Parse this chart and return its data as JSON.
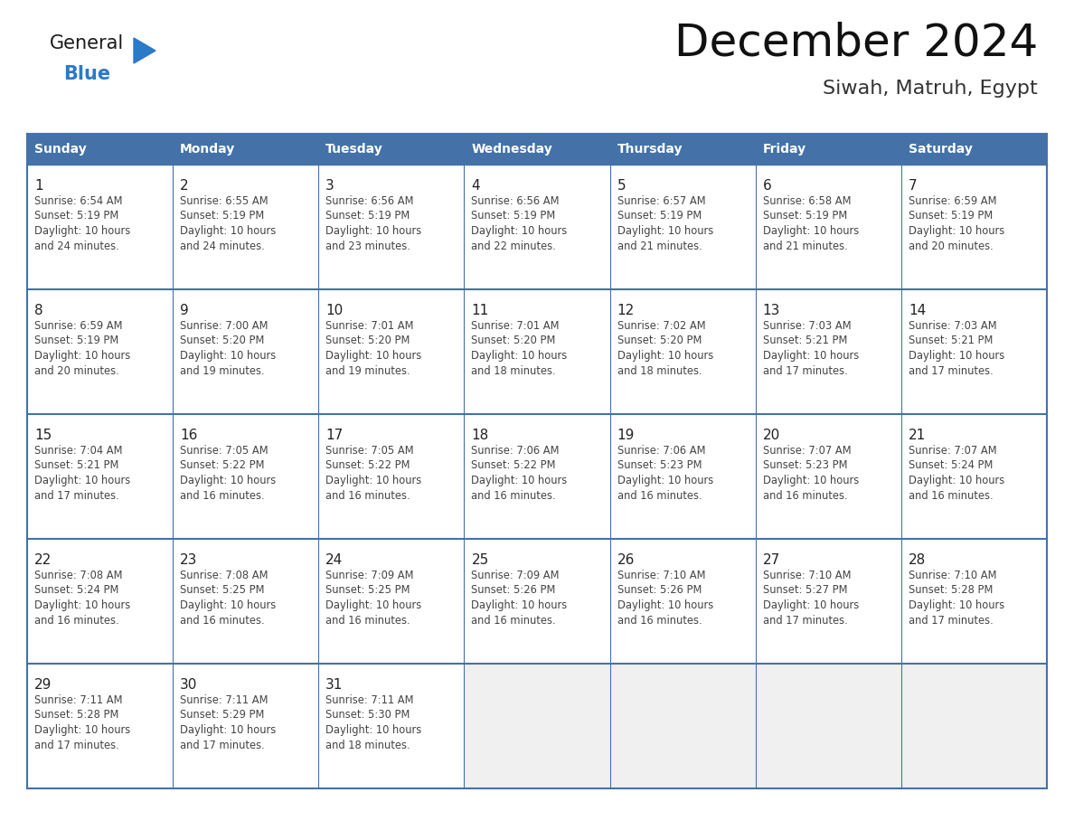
{
  "title": "December 2024",
  "subtitle": "Siwah, Matruh, Egypt",
  "days_of_week": [
    "Sunday",
    "Monday",
    "Tuesday",
    "Wednesday",
    "Thursday",
    "Friday",
    "Saturday"
  ],
  "header_bg": "#4472a8",
  "header_text": "#ffffff",
  "border_color": "#4472a8",
  "empty_cell_bg": "#f0f0f0",
  "logo_general_color": "#1a1a1a",
  "logo_blue_color": "#2a7ac7",
  "title_color": "#111111",
  "subtitle_color": "#333333",
  "day_num_color": "#222222",
  "cell_text_color": "#444444",
  "calendar": [
    [
      {
        "day": 1,
        "sunrise": "6:54 AM",
        "sunset": "5:19 PM",
        "daylight_min": "24 minutes."
      },
      {
        "day": 2,
        "sunrise": "6:55 AM",
        "sunset": "5:19 PM",
        "daylight_min": "24 minutes."
      },
      {
        "day": 3,
        "sunrise": "6:56 AM",
        "sunset": "5:19 PM",
        "daylight_min": "23 minutes."
      },
      {
        "day": 4,
        "sunrise": "6:56 AM",
        "sunset": "5:19 PM",
        "daylight_min": "22 minutes."
      },
      {
        "day": 5,
        "sunrise": "6:57 AM",
        "sunset": "5:19 PM",
        "daylight_min": "21 minutes."
      },
      {
        "day": 6,
        "sunrise": "6:58 AM",
        "sunset": "5:19 PM",
        "daylight_min": "21 minutes."
      },
      {
        "day": 7,
        "sunrise": "6:59 AM",
        "sunset": "5:19 PM",
        "daylight_min": "20 minutes."
      }
    ],
    [
      {
        "day": 8,
        "sunrise": "6:59 AM",
        "sunset": "5:19 PM",
        "daylight_min": "20 minutes."
      },
      {
        "day": 9,
        "sunrise": "7:00 AM",
        "sunset": "5:20 PM",
        "daylight_min": "19 minutes."
      },
      {
        "day": 10,
        "sunrise": "7:01 AM",
        "sunset": "5:20 PM",
        "daylight_min": "19 minutes."
      },
      {
        "day": 11,
        "sunrise": "7:01 AM",
        "sunset": "5:20 PM",
        "daylight_min": "18 minutes."
      },
      {
        "day": 12,
        "sunrise": "7:02 AM",
        "sunset": "5:20 PM",
        "daylight_min": "18 minutes."
      },
      {
        "day": 13,
        "sunrise": "7:03 AM",
        "sunset": "5:21 PM",
        "daylight_min": "17 minutes."
      },
      {
        "day": 14,
        "sunrise": "7:03 AM",
        "sunset": "5:21 PM",
        "daylight_min": "17 minutes."
      }
    ],
    [
      {
        "day": 15,
        "sunrise": "7:04 AM",
        "sunset": "5:21 PM",
        "daylight_min": "17 minutes."
      },
      {
        "day": 16,
        "sunrise": "7:05 AM",
        "sunset": "5:22 PM",
        "daylight_min": "16 minutes."
      },
      {
        "day": 17,
        "sunrise": "7:05 AM",
        "sunset": "5:22 PM",
        "daylight_min": "16 minutes."
      },
      {
        "day": 18,
        "sunrise": "7:06 AM",
        "sunset": "5:22 PM",
        "daylight_min": "16 minutes."
      },
      {
        "day": 19,
        "sunrise": "7:06 AM",
        "sunset": "5:23 PM",
        "daylight_min": "16 minutes."
      },
      {
        "day": 20,
        "sunrise": "7:07 AM",
        "sunset": "5:23 PM",
        "daylight_min": "16 minutes."
      },
      {
        "day": 21,
        "sunrise": "7:07 AM",
        "sunset": "5:24 PM",
        "daylight_min": "16 minutes."
      }
    ],
    [
      {
        "day": 22,
        "sunrise": "7:08 AM",
        "sunset": "5:24 PM",
        "daylight_min": "16 minutes."
      },
      {
        "day": 23,
        "sunrise": "7:08 AM",
        "sunset": "5:25 PM",
        "daylight_min": "16 minutes."
      },
      {
        "day": 24,
        "sunrise": "7:09 AM",
        "sunset": "5:25 PM",
        "daylight_min": "16 minutes."
      },
      {
        "day": 25,
        "sunrise": "7:09 AM",
        "sunset": "5:26 PM",
        "daylight_min": "16 minutes."
      },
      {
        "day": 26,
        "sunrise": "7:10 AM",
        "sunset": "5:26 PM",
        "daylight_min": "16 minutes."
      },
      {
        "day": 27,
        "sunrise": "7:10 AM",
        "sunset": "5:27 PM",
        "daylight_min": "17 minutes."
      },
      {
        "day": 28,
        "sunrise": "7:10 AM",
        "sunset": "5:28 PM",
        "daylight_min": "17 minutes."
      }
    ],
    [
      {
        "day": 29,
        "sunrise": "7:11 AM",
        "sunset": "5:28 PM",
        "daylight_min": "17 minutes."
      },
      {
        "day": 30,
        "sunrise": "7:11 AM",
        "sunset": "5:29 PM",
        "daylight_min": "17 minutes."
      },
      {
        "day": 31,
        "sunrise": "7:11 AM",
        "sunset": "5:30 PM",
        "daylight_min": "18 minutes."
      },
      null,
      null,
      null,
      null
    ]
  ]
}
